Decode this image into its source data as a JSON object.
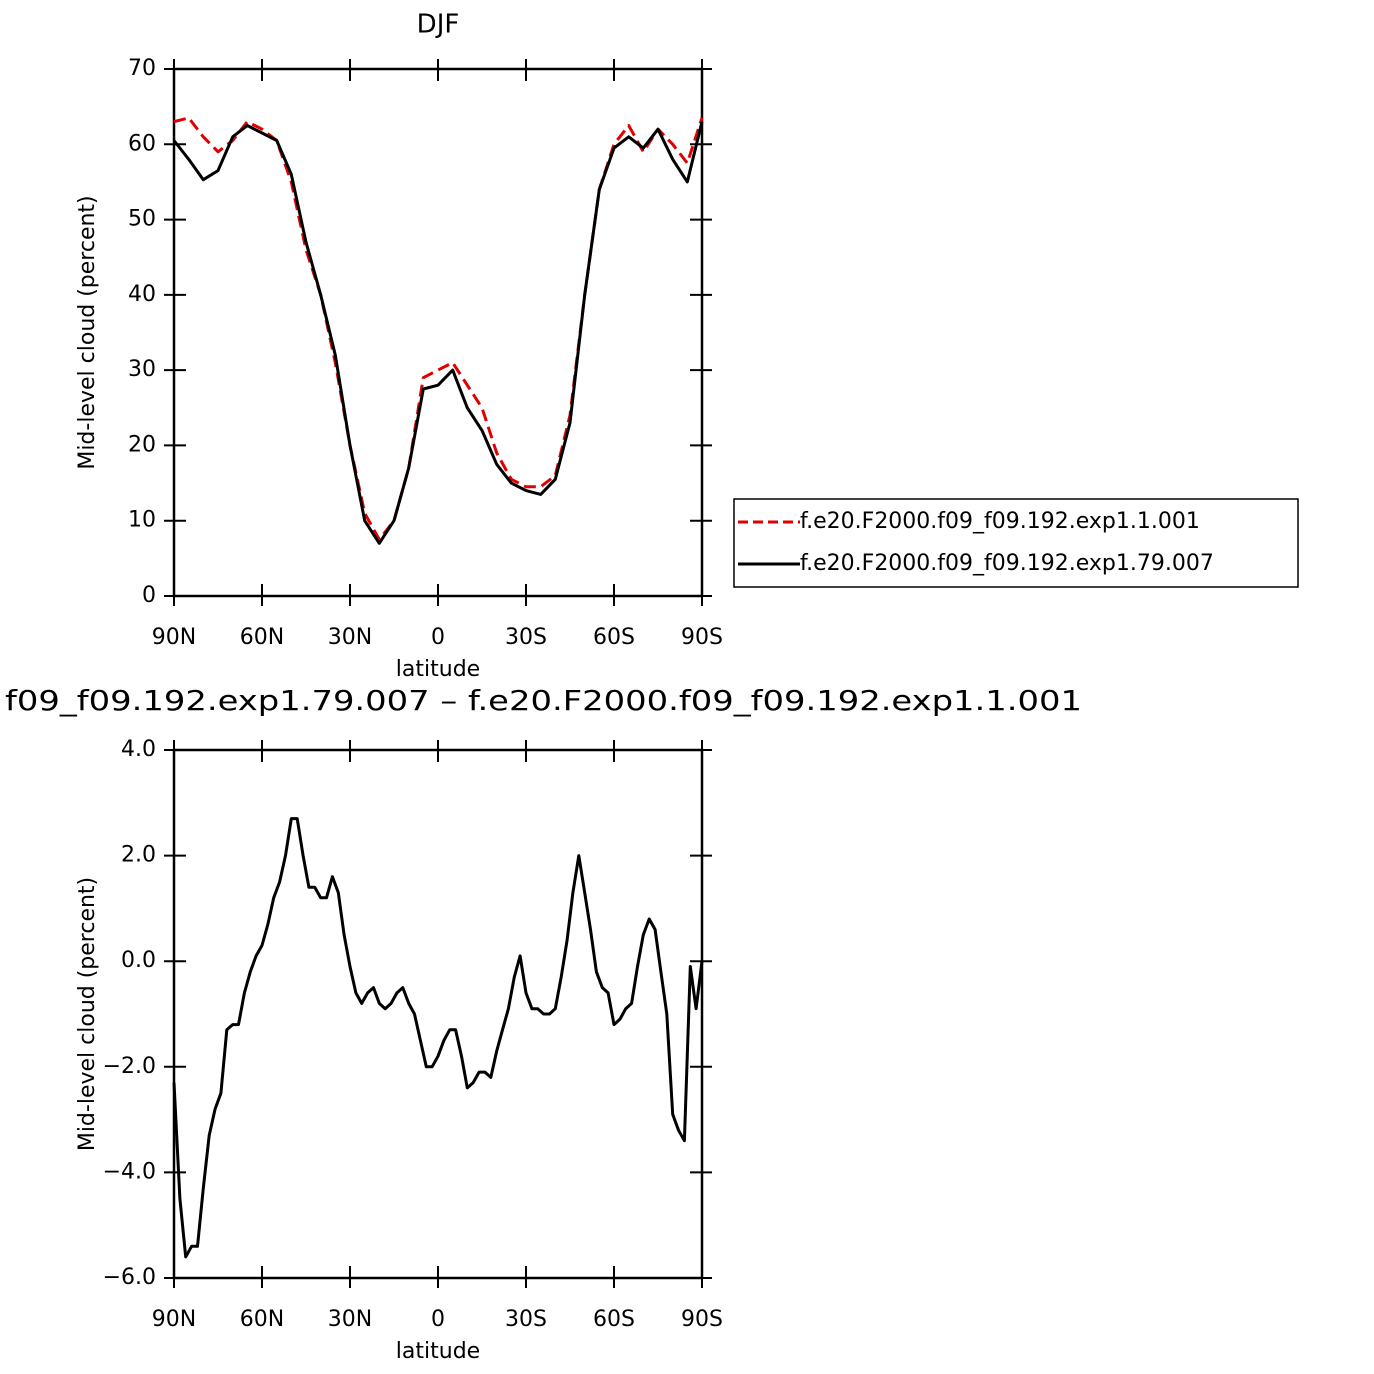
{
  "chart_data": [
    {
      "type": "line",
      "title": "DJF",
      "xlabel": "latitude",
      "ylabel": "Mid-level cloud (percent)",
      "legend": "right",
      "x": [
        90,
        85,
        80,
        75,
        70,
        65,
        60,
        55,
        50,
        45,
        40,
        35,
        30,
        25,
        20,
        15,
        10,
        5,
        0,
        -5,
        -10,
        -15,
        -20,
        -25,
        -30,
        -35,
        -40,
        -45,
        -50,
        -55,
        -60,
        -65,
        -70,
        -75,
        -80,
        -85,
        -90
      ],
      "series": [
        {
          "name": "f.e20.F2000.f09_f09.192.exp1.1.001",
          "color": "#e00000",
          "dash": true,
          "values": [
            63,
            63.5,
            61,
            59,
            60.5,
            63,
            62,
            60.5,
            55,
            46,
            40,
            31,
            20,
            11,
            7.5,
            10,
            17,
            29,
            30,
            31,
            28,
            25,
            19,
            15.5,
            14.5,
            14.5,
            16,
            24,
            40,
            54,
            60,
            62.5,
            59,
            62,
            60,
            57.5,
            63.5
          ]
        },
        {
          "name": "f.e20.F2000.f09_f09.192.exp1.79.007",
          "color": "#000000",
          "dash": false,
          "values": [
            60.5,
            58,
            55.3,
            56.5,
            61,
            62.5,
            61.5,
            60.5,
            56,
            47,
            40,
            32,
            20,
            10,
            7,
            10,
            17,
            27.5,
            28,
            30,
            25,
            22,
            17.5,
            15,
            14,
            13.5,
            15.5,
            23,
            40,
            54,
            59.5,
            61,
            59.5,
            62,
            58,
            55,
            63
          ]
        }
      ],
      "xlim": [
        90,
        -90
      ],
      "xticks": [
        {
          "value": 90,
          "label": "90N"
        },
        {
          "value": 60,
          "label": "60N"
        },
        {
          "value": 30,
          "label": "30N"
        },
        0,
        {
          "value": -30,
          "label": "30S"
        },
        {
          "value": -60,
          "label": "60S"
        },
        {
          "value": -90,
          "label": "90S"
        }
      ],
      "ylim": [
        0,
        70
      ],
      "yticks": [
        0,
        10,
        20,
        30,
        40,
        50,
        60,
        70
      ]
    },
    {
      "type": "line",
      "title": "f09_f09.192.exp1.79.007 – f.e20.F2000.f09_f09.192.exp1.1.001",
      "xlabel": "latitude",
      "ylabel": "Mid-level cloud (percent)",
      "x": [
        90,
        88,
        86,
        84,
        82,
        80,
        78,
        76,
        74,
        72,
        70,
        68,
        66,
        64,
        62,
        60,
        58,
        56,
        54,
        52,
        50,
        48,
        46,
        44,
        42,
        40,
        38,
        36,
        34,
        32,
        30,
        28,
        26,
        24,
        22,
        20,
        18,
        16,
        14,
        12,
        10,
        8,
        6,
        4,
        2,
        0,
        -2,
        -4,
        -6,
        -8,
        -10,
        -12,
        -14,
        -16,
        -18,
        -20,
        -22,
        -24,
        -26,
        -28,
        -30,
        -32,
        -34,
        -36,
        -38,
        -40,
        -42,
        -44,
        -46,
        -48,
        -50,
        -52,
        -54,
        -56,
        -58,
        -60,
        -62,
        -64,
        -66,
        -68,
        -70,
        -72,
        -74,
        -76,
        -78,
        -80,
        -82,
        -84,
        -86,
        -88,
        -90
      ],
      "series": [
        {
          "color": "#000000",
          "dash": false,
          "values": [
            -2.3,
            -4.5,
            -5.6,
            -5.4,
            -5.4,
            -4.3,
            -3.3,
            -2.8,
            -2.5,
            -1.3,
            -1.2,
            -1.2,
            -0.6,
            -0.2,
            0.1,
            0.3,
            0.7,
            1.2,
            1.5,
            2.0,
            2.7,
            2.7,
            2.0,
            1.4,
            1.4,
            1.2,
            1.2,
            1.6,
            1.3,
            0.5,
            -0.1,
            -0.6,
            -0.8,
            -0.6,
            -0.5,
            -0.8,
            -0.9,
            -0.8,
            -0.6,
            -0.5,
            -0.8,
            -1.0,
            -1.5,
            -2.0,
            -2.0,
            -1.8,
            -1.5,
            -1.3,
            -1.3,
            -1.8,
            -2.4,
            -2.3,
            -2.1,
            -2.1,
            -2.2,
            -1.7,
            -1.3,
            -0.9,
            -0.3,
            0.1,
            -0.6,
            -0.9,
            -0.9,
            -1.0,
            -1.0,
            -0.9,
            -0.3,
            0.4,
            1.3,
            2.0,
            1.3,
            0.6,
            -0.2,
            -0.5,
            -0.6,
            -1.2,
            -1.1,
            -0.9,
            -0.8,
            -0.1,
            0.5,
            0.8,
            0.6,
            -0.2,
            -1.0,
            -2.9,
            -3.2,
            -3.4,
            -0.1,
            -0.9,
            0.0
          ]
        }
      ],
      "xlim": [
        90,
        -90
      ],
      "xticks": [
        {
          "value": 90,
          "label": "90N"
        },
        {
          "value": 60,
          "label": "60N"
        },
        {
          "value": 30,
          "label": "30N"
        },
        0,
        {
          "value": -30,
          "label": "30S"
        },
        {
          "value": -60,
          "label": "60S"
        },
        {
          "value": -90,
          "label": "90S"
        }
      ],
      "ylim": [
        -6,
        4
      ],
      "yticks": [
        {
          "value": -6,
          "label": "−6.0"
        },
        {
          "value": -4,
          "label": "−4.0"
        },
        {
          "value": -2,
          "label": "−2.0"
        },
        {
          "value": 0,
          "label": "0.0"
        },
        {
          "value": 2,
          "label": "2.0"
        },
        {
          "value": 4,
          "label": "4.0"
        }
      ]
    }
  ]
}
